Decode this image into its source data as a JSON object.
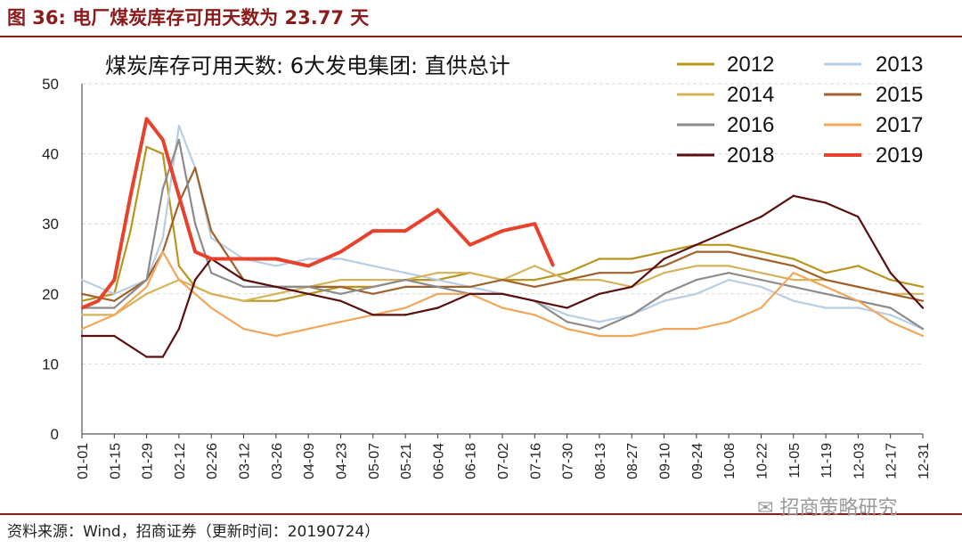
{
  "figure_title": "图 36:  电厂煤炭库存可用天数为 23.77 天",
  "source_note": "资料来源：Wind，招商证券（更新时间：20190724）",
  "watermark": "招商策略研究",
  "watermark_icon": "wechat-icon",
  "colors": {
    "header": "#8b1a1a",
    "2012": "#b8961e",
    "2013": "#b9cde4",
    "2014": "#d4b45a",
    "2015": "#a0612a",
    "2016": "#8c8c8c",
    "2017": "#f2a65a",
    "2018": "#5a0f0f",
    "2019": "#e8412c"
  },
  "chart_data": {
    "type": "line",
    "title": "煤炭库存可用天数: 6大发电集团: 直供总计",
    "xlabel": "",
    "ylabel": "",
    "ylim": [
      0,
      50
    ],
    "yticks": [
      0,
      10,
      20,
      30,
      40,
      50
    ],
    "grid": "horizontal dashed",
    "legend_position": "top-right",
    "x_categories": [
      "01-01",
      "01-15",
      "01-29",
      "02-12",
      "02-26",
      "03-12",
      "03-26",
      "04-09",
      "04-23",
      "05-07",
      "05-21",
      "06-04",
      "06-18",
      "07-02",
      "07-16",
      "07-30",
      "08-13",
      "08-27",
      "09-10",
      "09-24",
      "10-08",
      "10-22",
      "11-05",
      "11-19",
      "12-03",
      "12-17",
      "12-31"
    ],
    "series": [
      {
        "name": "2012",
        "x": [
          "01-01",
          "01-15",
          "01-22",
          "01-29",
          "02-05",
          "02-12",
          "02-19",
          "02-26",
          "03-12",
          "03-26",
          "04-09",
          "04-23",
          "05-07",
          "05-21",
          "06-04",
          "06-18",
          "07-02",
          "07-16",
          "07-30",
          "08-13",
          "08-27",
          "09-10",
          "09-24",
          "10-08",
          "10-22",
          "11-05",
          "11-19",
          "12-03",
          "12-17",
          "12-31"
        ],
        "values": [
          19,
          20,
          29,
          41,
          40,
          24,
          21,
          20,
          19,
          19,
          20,
          21,
          21,
          22,
          22,
          23,
          22,
          22,
          23,
          25,
          25,
          26,
          27,
          27,
          26,
          25,
          23,
          24,
          22,
          21
        ]
      },
      {
        "name": "2013",
        "x": [
          "01-01",
          "01-15",
          "01-29",
          "02-05",
          "02-12",
          "02-19",
          "02-26",
          "03-12",
          "03-26",
          "04-09",
          "04-23",
          "05-07",
          "05-21",
          "06-04",
          "06-18",
          "07-02",
          "07-16",
          "07-30",
          "08-13",
          "08-27",
          "09-10",
          "09-24",
          "10-08",
          "10-22",
          "11-05",
          "11-19",
          "12-03",
          "12-17",
          "12-31"
        ],
        "values": [
          22,
          20,
          22,
          28,
          44,
          38,
          28,
          25,
          24,
          25,
          25,
          24,
          23,
          22,
          21,
          20,
          19,
          17,
          16,
          17,
          19,
          20,
          22,
          21,
          19,
          18,
          18,
          17,
          15
        ]
      },
      {
        "name": "2014",
        "x": [
          "01-01",
          "01-15",
          "01-29",
          "02-12",
          "02-26",
          "03-12",
          "03-26",
          "04-09",
          "04-23",
          "05-07",
          "05-21",
          "06-04",
          "06-18",
          "07-02",
          "07-16",
          "07-30",
          "08-13",
          "08-27",
          "09-10",
          "09-24",
          "10-08",
          "10-22",
          "11-05",
          "11-19",
          "12-03",
          "12-17",
          "12-31"
        ],
        "values": [
          17,
          17,
          20,
          22,
          20,
          19,
          20,
          21,
          22,
          22,
          22,
          23,
          23,
          22,
          24,
          22,
          22,
          21,
          23,
          24,
          24,
          23,
          22,
          22,
          21,
          20,
          20
        ]
      },
      {
        "name": "2015",
        "x": [
          "01-01",
          "01-15",
          "01-29",
          "02-05",
          "02-12",
          "02-19",
          "02-26",
          "03-12",
          "03-26",
          "04-09",
          "04-23",
          "05-07",
          "05-21",
          "06-04",
          "06-18",
          "07-02",
          "07-16",
          "07-30",
          "08-13",
          "08-27",
          "09-10",
          "09-24",
          "10-08",
          "10-22",
          "11-05",
          "11-19",
          "12-03",
          "12-17",
          "12-31"
        ],
        "values": [
          20,
          19,
          22,
          26,
          33,
          38,
          29,
          22,
          21,
          21,
          21,
          20,
          21,
          21,
          21,
          22,
          21,
          22,
          23,
          23,
          24,
          26,
          26,
          25,
          24,
          22,
          21,
          20,
          19
        ]
      },
      {
        "name": "2016",
        "x": [
          "01-01",
          "01-15",
          "01-29",
          "02-05",
          "02-12",
          "02-19",
          "02-26",
          "03-12",
          "03-26",
          "04-09",
          "04-23",
          "05-07",
          "05-21",
          "06-04",
          "06-18",
          "07-02",
          "07-16",
          "07-30",
          "08-13",
          "08-27",
          "09-10",
          "09-24",
          "10-08",
          "10-22",
          "11-05",
          "11-19",
          "12-03",
          "12-17",
          "12-31"
        ],
        "values": [
          18,
          18,
          22,
          35,
          42,
          30,
          23,
          21,
          21,
          21,
          20,
          21,
          22,
          21,
          20,
          20,
          19,
          16,
          15,
          17,
          20,
          22,
          23,
          22,
          21,
          20,
          19,
          18,
          15
        ]
      },
      {
        "name": "2017",
        "x": [
          "01-01",
          "01-15",
          "01-29",
          "02-05",
          "02-12",
          "02-26",
          "03-12",
          "03-26",
          "04-09",
          "04-23",
          "05-07",
          "05-21",
          "06-04",
          "06-18",
          "07-02",
          "07-16",
          "07-30",
          "08-13",
          "08-27",
          "09-10",
          "09-24",
          "10-08",
          "10-22",
          "11-05",
          "11-19",
          "12-03",
          "12-17",
          "12-31"
        ],
        "values": [
          15,
          17,
          21,
          26,
          22,
          18,
          15,
          14,
          15,
          16,
          17,
          18,
          20,
          20,
          18,
          17,
          15,
          14,
          14,
          15,
          15,
          16,
          18,
          23,
          21,
          19,
          16,
          14
        ]
      },
      {
        "name": "2018",
        "x": [
          "01-01",
          "01-15",
          "01-29",
          "02-05",
          "02-12",
          "02-19",
          "02-26",
          "03-12",
          "03-26",
          "04-09",
          "04-23",
          "05-07",
          "05-21",
          "06-04",
          "06-18",
          "07-02",
          "07-16",
          "07-30",
          "08-13",
          "08-27",
          "09-10",
          "09-24",
          "10-08",
          "10-22",
          "11-05",
          "11-19",
          "12-03",
          "12-17",
          "12-31"
        ],
        "values": [
          14,
          14,
          11,
          11,
          15,
          22,
          25,
          22,
          21,
          20,
          19,
          17,
          17,
          18,
          20,
          20,
          19,
          18,
          20,
          21,
          25,
          27,
          29,
          31,
          34,
          33,
          31,
          23,
          18
        ]
      },
      {
        "name": "2019",
        "x": [
          "01-01",
          "01-08",
          "01-15",
          "01-22",
          "01-29",
          "02-05",
          "02-12",
          "02-19",
          "02-26",
          "03-12",
          "03-26",
          "04-09",
          "04-23",
          "05-07",
          "05-21",
          "06-04",
          "06-18",
          "07-02",
          "07-16",
          "07-24"
        ],
        "values": [
          18,
          19,
          22,
          34,
          45,
          42,
          34,
          26,
          25,
          25,
          25,
          24,
          26,
          29,
          29,
          32,
          27,
          29,
          30,
          24
        ]
      }
    ]
  }
}
